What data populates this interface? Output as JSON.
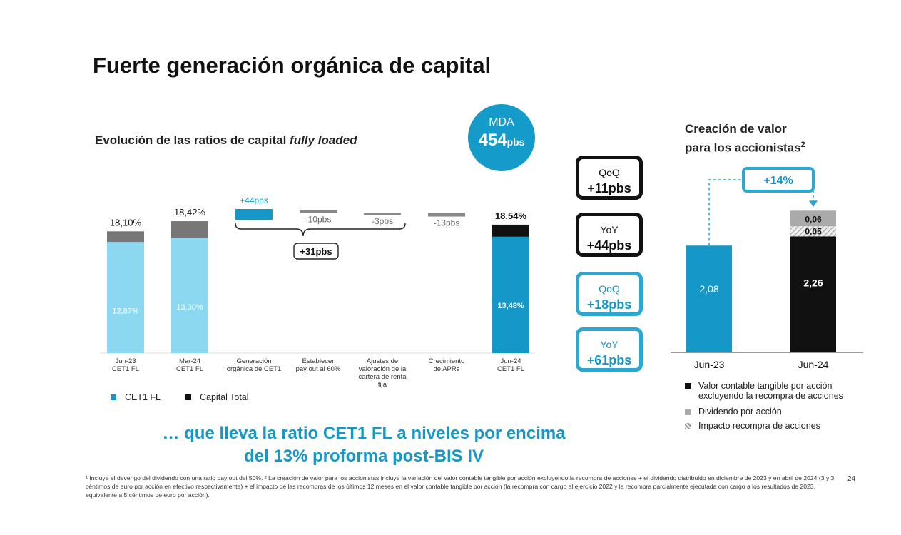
{
  "title": "Fuerte generación orgánica de capital",
  "left_chart": {
    "subtitle_prefix": "Evolución de las ratios de capital ",
    "subtitle_italic": "fully loaded",
    "legend": {
      "cet1": "CET1 FL",
      "total": "Capital Total"
    },
    "colors": {
      "cet1_light": "#8bd8f0",
      "cet1_dark": "#1597c7",
      "total": "#777777",
      "total_black": "#111111"
    }
  },
  "mda": {
    "label": "MDA",
    "value": "454",
    "unit": "pbs"
  },
  "pills": [
    {
      "period": "QoQ",
      "value": "+11pbs",
      "style": "black"
    },
    {
      "period": "YoY",
      "value": "+44pbs",
      "style": "black"
    },
    {
      "period": "QoQ",
      "value": "+18pbs",
      "style": "blue"
    },
    {
      "period": "YoY",
      "value": "+61pbs",
      "style": "blue"
    }
  ],
  "right_chart": {
    "title_line1": "Creación de valor",
    "title_line2": "para los accionistas",
    "title_sup": "2",
    "growth": "+14%",
    "legend": [
      {
        "label": "Valor contable tangible por acción excluyendo la recompra de acciones",
        "swatch": "#111111"
      },
      {
        "label": "Dividendo por acción",
        "swatch": "#aaaaaa"
      },
      {
        "label": "Impacto recompra de acciones",
        "swatch": "hatch"
      }
    ]
  },
  "tagline": {
    "line1": "… que lleva la ratio CET1 FL a niveles por encima",
    "line2": "del 13% proforma post-BIS IV"
  },
  "footnote": "¹ Incluye el devengo del dividendo con una ratio pay out del 50%. ² La creación de valor para los accionistas incluye la variación del valor contable tangible por acción excluyendo la recompra de acciones + el dividendo distribuido en diciembre de 2023 y en abril de 2024 (3 y 3 céntimos de euro por acción en efectivo respectivamente) + el impacto de las recompras de los últimos 12 meses en el valor contable tangible por acción (la recompra con cargo al ejercicio 2022 y la recompra parcialmente ejecutada con cargo a los resultados de 2023, equivalente a 5 céntimos de euro por acción).",
  "page_number": "24",
  "chart_data": [
    {
      "type": "bar",
      "categories": [
        "Jun-23 CET1 FL",
        "Mar-24 CET1 FL",
        "Generación orgánica de CET1",
        "Establecer pay out al 60%",
        "Ajustes de valoración de la cartera de renta fija",
        "Crecimiento de APRs",
        "Jun-24 CET1 FL"
      ],
      "category_lines": [
        [
          "Jun-23",
          "CET1 FL"
        ],
        [
          "Mar-24",
          "CET1 FL"
        ],
        [
          "Generación",
          "orgánica de CET1"
        ],
        [
          "Establecer",
          "pay out al 60%"
        ],
        [
          "Ajustes de",
          "valoración de la",
          "cartera de renta",
          "fija"
        ],
        [
          "Crecimiento",
          "de APRs"
        ],
        [
          "Jun-24",
          "CET1 FL"
        ]
      ],
      "cet1_values": [
        12.87,
        13.3,
        null,
        null,
        null,
        null,
        13.48
      ],
      "total_values": [
        18.1,
        18.42,
        null,
        null,
        null,
        null,
        18.54
      ],
      "cet1_labels": [
        "12,87%",
        "13,30%",
        "",
        "",
        "",
        "",
        "13,48%"
      ],
      "total_labels": [
        "18,10%",
        "18,42%",
        "",
        "",
        "",
        "",
        "18,54%"
      ],
      "deltas_pbs": [
        null,
        null,
        44,
        -10,
        -3,
        -13,
        null
      ],
      "delta_labels": [
        "",
        "",
        "+44pbs",
        "-10pbs",
        "-3pbs",
        "-13pbs",
        ""
      ],
      "bracket_label": "+31pbs"
    },
    {
      "type": "bar",
      "categories": [
        "Jun-23",
        "Jun-24"
      ],
      "series": [
        {
          "name": "Valor contable tangible por acción excluyendo la recompra de acciones",
          "values": [
            2.08,
            2.26
          ],
          "labels": [
            "2,08",
            "2,26"
          ]
        },
        {
          "name": "Impacto recompra de acciones",
          "values": [
            0,
            0.05
          ],
          "labels": [
            "",
            "0,05"
          ]
        },
        {
          "name": "Dividendo por acción",
          "values": [
            0,
            0.06
          ],
          "labels": [
            "",
            "0,06"
          ]
        }
      ]
    }
  ]
}
